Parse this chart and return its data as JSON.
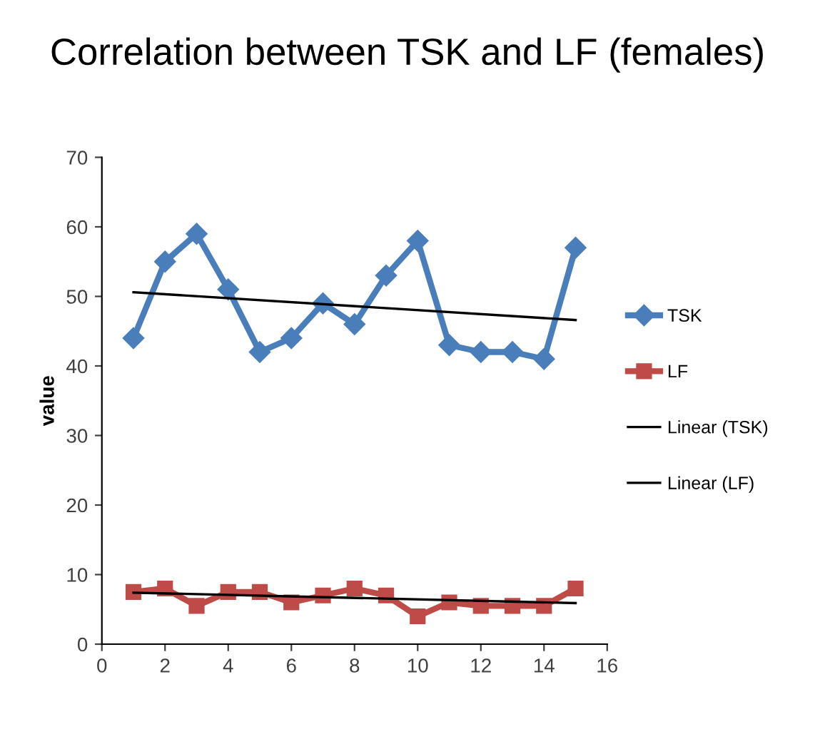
{
  "chart_data": {
    "type": "line",
    "title": "Correlation between TSK and LF (females)",
    "ylabel": "value",
    "xlim": [
      0,
      16
    ],
    "xticks": [
      0,
      2,
      4,
      6,
      8,
      10,
      12,
      14,
      16
    ],
    "ylim": [
      0,
      70
    ],
    "yticks": [
      0,
      10,
      20,
      30,
      40,
      50,
      60,
      70
    ],
    "grid": false,
    "legend": "right",
    "series": [
      {
        "name": "TSK",
        "color": "#4a7ebb",
        "marker": "diamond",
        "x": [
          1,
          2,
          3,
          4,
          5,
          6,
          7,
          8,
          9,
          10,
          11,
          12,
          13,
          14,
          15
        ],
        "values": [
          44,
          55,
          59,
          51,
          42,
          44,
          49,
          46,
          53,
          58,
          43,
          42,
          42,
          41,
          57
        ]
      },
      {
        "name": "LF",
        "color": "#be4b48",
        "marker": "square",
        "x": [
          1,
          2,
          3,
          4,
          5,
          6,
          7,
          8,
          9,
          10,
          11,
          12,
          13,
          14,
          15
        ],
        "values": [
          7.5,
          8,
          5.5,
          7.5,
          7.5,
          6,
          7,
          8,
          7,
          4,
          6,
          5.5,
          5.5,
          5.5,
          8
        ]
      },
      {
        "name": "Linear (TSK)",
        "color": "#000000",
        "marker": "none",
        "x": [
          1,
          15
        ],
        "values": [
          50.6,
          46.6
        ]
      },
      {
        "name": "Linear (LF)",
        "color": "#000000",
        "marker": "none",
        "x": [
          1,
          15
        ],
        "values": [
          7.4,
          5.9
        ]
      }
    ]
  }
}
